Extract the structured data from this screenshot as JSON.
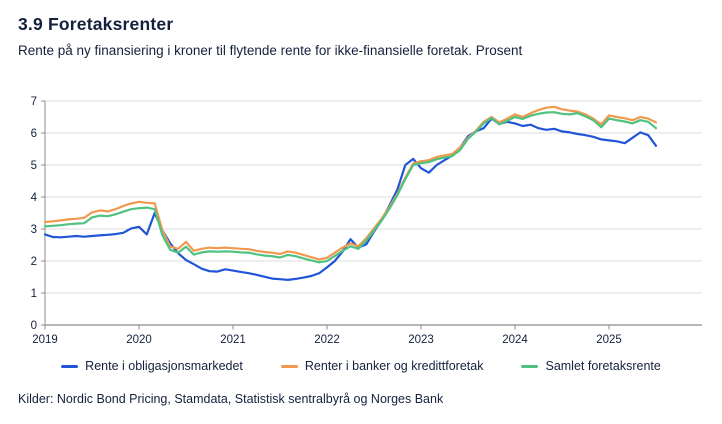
{
  "header": {
    "title": "3.9 Foretaksrenter",
    "subtitle": "Rente på ny finansiering i kroner til flytende rente for ikke-finansielle foretak. Prosent"
  },
  "footer": {
    "sources": "Kilder: Nordic Bond Pricing, Stamdata, Statistisk sentralbyrå og Norges Bank"
  },
  "colors": {
    "text": "#14213d",
    "grid": "#dcdcdc",
    "axis": "#8c8c8c",
    "blue": "#2154d6",
    "orange": "#f0994f",
    "green": "#4fc281"
  },
  "chart_data": {
    "type": "line",
    "title": "3.9 Foretaksrenter",
    "x_unit": "month",
    "x_start": "2019-01",
    "x_end": "2025-07",
    "x_tick_labels": [
      "2019",
      "2020",
      "2021",
      "2022",
      "2023",
      "2024",
      "2025"
    ],
    "ylim": [
      0,
      7
    ],
    "y_tick_labels": [
      "0",
      "1",
      "2",
      "3",
      "4",
      "5",
      "6",
      "7"
    ],
    "grid": "horizontal",
    "legend_position": "bottom",
    "series": [
      {
        "name": "Rente i obligasjonsmarkedet",
        "color": "#2154d6",
        "values": [
          2.83,
          2.75,
          2.74,
          2.76,
          2.78,
          2.76,
          2.78,
          2.8,
          2.82,
          2.84,
          2.88,
          3.02,
          3.07,
          2.83,
          3.5,
          2.95,
          2.55,
          2.24,
          2.03,
          1.9,
          1.76,
          1.68,
          1.67,
          1.74,
          1.7,
          1.66,
          1.62,
          1.57,
          1.51,
          1.45,
          1.43,
          1.41,
          1.44,
          1.48,
          1.53,
          1.62,
          1.8,
          2.0,
          2.3,
          2.68,
          2.42,
          2.52,
          2.92,
          3.28,
          3.75,
          4.24,
          5.0,
          5.19,
          4.9,
          4.76,
          5.0,
          5.15,
          5.3,
          5.55,
          5.9,
          6.05,
          6.15,
          6.45,
          6.28,
          6.35,
          6.3,
          6.22,
          6.26,
          6.15,
          6.1,
          6.13,
          6.05,
          6.02,
          5.97,
          5.93,
          5.88,
          5.8,
          5.77,
          5.74,
          5.68,
          5.85,
          6.02,
          5.93,
          5.6
        ]
      },
      {
        "name": "Renter i banker og kredittforetak",
        "color": "#f0994f",
        "values": [
          3.22,
          3.24,
          3.27,
          3.3,
          3.32,
          3.35,
          3.52,
          3.58,
          3.55,
          3.62,
          3.72,
          3.8,
          3.85,
          3.82,
          3.8,
          2.95,
          2.45,
          2.38,
          2.6,
          2.32,
          2.38,
          2.42,
          2.4,
          2.42,
          2.4,
          2.38,
          2.37,
          2.32,
          2.28,
          2.26,
          2.22,
          2.3,
          2.26,
          2.19,
          2.12,
          2.05,
          2.1,
          2.26,
          2.42,
          2.55,
          2.46,
          2.71,
          3.02,
          3.33,
          3.7,
          4.11,
          4.6,
          5.05,
          5.12,
          5.15,
          5.25,
          5.3,
          5.35,
          5.55,
          5.85,
          6.07,
          6.35,
          6.5,
          6.33,
          6.45,
          6.58,
          6.5,
          6.62,
          6.72,
          6.79,
          6.82,
          6.74,
          6.7,
          6.67,
          6.58,
          6.45,
          6.27,
          6.55,
          6.5,
          6.46,
          6.4,
          6.5,
          6.45,
          6.33
        ]
      },
      {
        "name": "Samlet foretaksrente",
        "color": "#4fc281",
        "values": [
          3.08,
          3.1,
          3.12,
          3.15,
          3.17,
          3.18,
          3.36,
          3.42,
          3.4,
          3.46,
          3.54,
          3.62,
          3.65,
          3.67,
          3.62,
          2.8,
          2.35,
          2.26,
          2.45,
          2.2,
          2.27,
          2.3,
          2.29,
          2.3,
          2.29,
          2.27,
          2.26,
          2.21,
          2.17,
          2.15,
          2.11,
          2.19,
          2.15,
          2.08,
          2.02,
          1.96,
          2.0,
          2.16,
          2.32,
          2.46,
          2.38,
          2.63,
          2.95,
          3.27,
          3.65,
          4.07,
          4.56,
          5.0,
          5.06,
          5.09,
          5.18,
          5.23,
          5.28,
          5.47,
          5.82,
          6.04,
          6.3,
          6.47,
          6.27,
          6.38,
          6.5,
          6.44,
          6.54,
          6.6,
          6.64,
          6.65,
          6.6,
          6.58,
          6.62,
          6.52,
          6.4,
          6.18,
          6.45,
          6.4,
          6.36,
          6.3,
          6.4,
          6.35,
          6.15
        ]
      }
    ]
  }
}
